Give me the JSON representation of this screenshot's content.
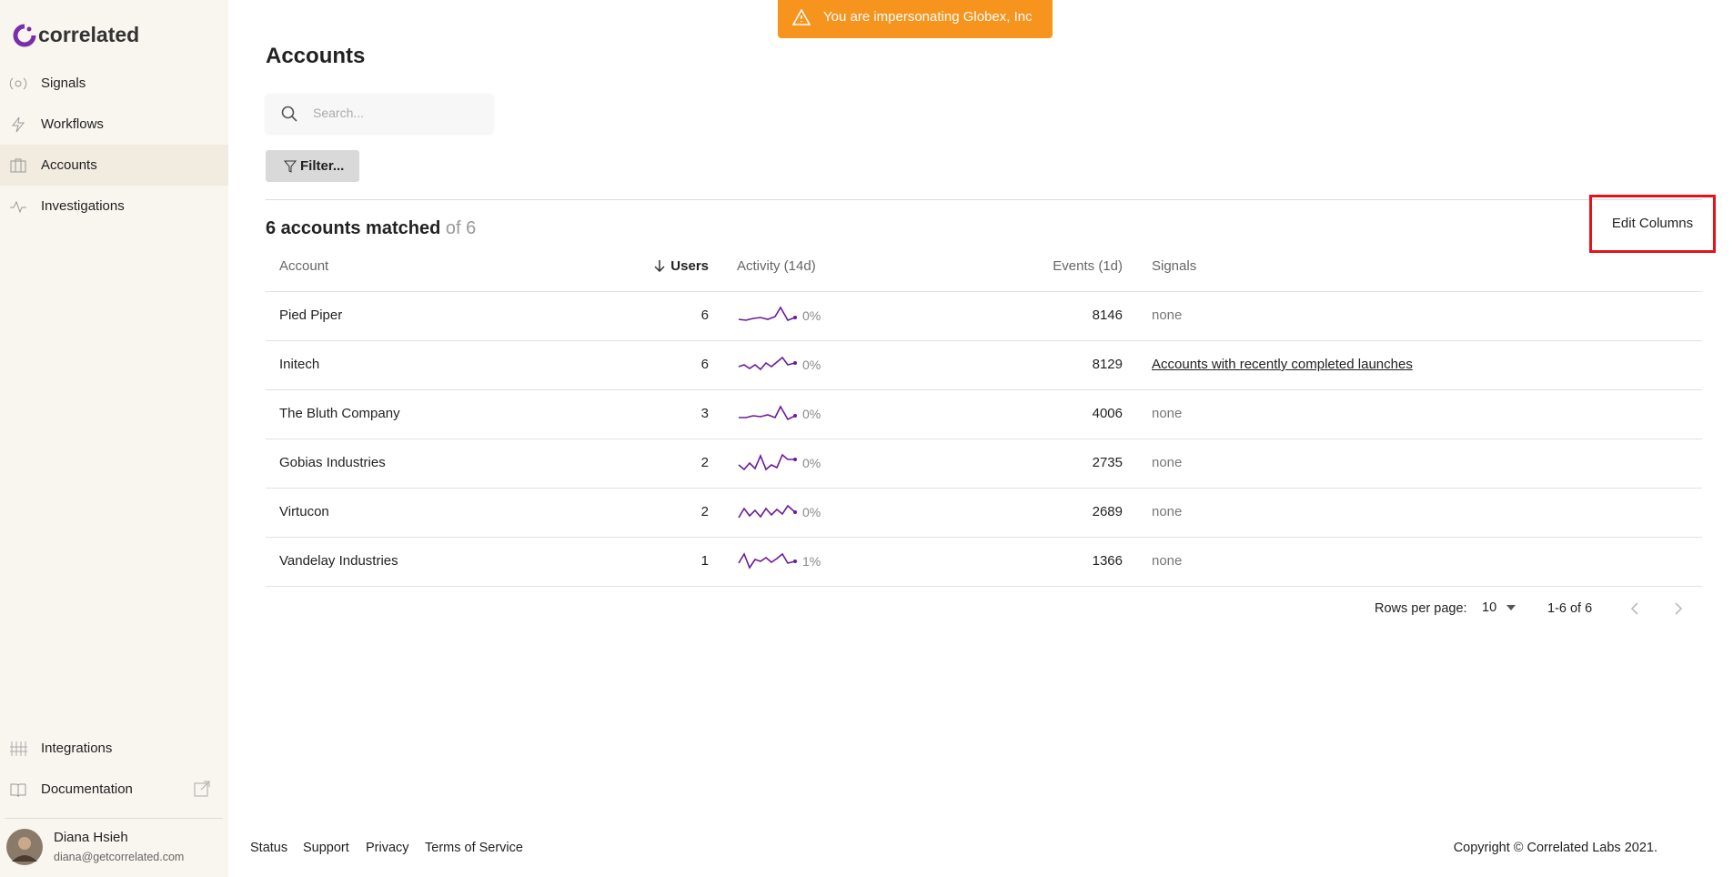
{
  "banner": "You are impersonating Globex, Inc",
  "logo": "correlated",
  "nav": {
    "main": [
      "Signals",
      "Workflows",
      "Accounts",
      "Investigations"
    ],
    "bottom": [
      "Integrations",
      "Documentation"
    ]
  },
  "user": {
    "name": "Diana Hsieh",
    "email": "diana@getcorrelated.com"
  },
  "page": {
    "title": "Accounts",
    "search_placeholder": "Search...",
    "filter": "Filter...",
    "matched": "6 accounts matched",
    "total": "of 6",
    "edit_columns": "Edit Columns"
  },
  "table": {
    "columns": [
      "Account",
      "Users",
      "Activity (14d)",
      "Events (1d)",
      "Signals"
    ],
    "rows": [
      [
        "Pied Piper",
        "6",
        "0%",
        "8146",
        "none"
      ],
      [
        "Initech",
        "6",
        "0%",
        "8129",
        "Accounts with recently completed launches"
      ],
      [
        "The Bluth Company",
        "3",
        "0%",
        "4006",
        "none"
      ],
      [
        "Gobias Industries",
        "2",
        "0%",
        "2735",
        "none"
      ],
      [
        "Virtucon",
        "2",
        "0%",
        "2689",
        "none"
      ],
      [
        "Vandelay Industries",
        "1",
        "1%",
        "1366",
        "none"
      ]
    ]
  },
  "pagination": {
    "rows_per_page_label": "Rows per page:",
    "rows_per_page": "10",
    "range": "1-6 of 6"
  },
  "footer": {
    "links": [
      "Status",
      "Support",
      "Privacy",
      "Terms of Service"
    ],
    "copyright": "Copyright © Correlated Labs 2021."
  }
}
